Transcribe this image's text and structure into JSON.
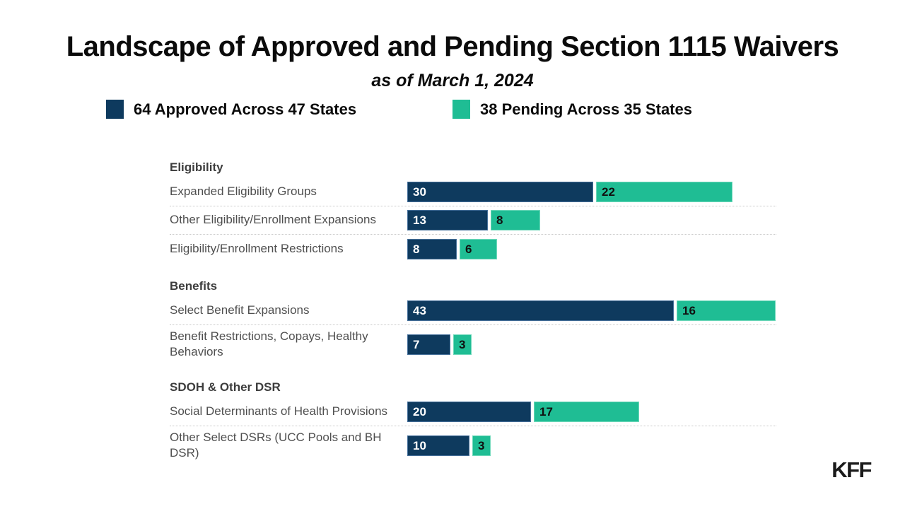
{
  "header": {
    "title": "Landscape of Approved and Pending Section 1115 Waivers",
    "subtitle": "as of March 1, 2024"
  },
  "legend": {
    "approved_label": "64 Approved Across 47 States",
    "pending_label": "38 Pending Across 35 States"
  },
  "footer": {
    "logo_text": "KFF"
  },
  "chart_data": {
    "type": "bar",
    "orientation": "horizontal",
    "x_max": 59,
    "grid": false,
    "legend_position": "top",
    "series": [
      {
        "name": "Approved",
        "color": "#0E3A5E",
        "border_color": "#46709a",
        "value_label_color": "#ffffff",
        "legend_label": "64 Approved Across 47 States"
      },
      {
        "name": "Pending",
        "color": "#1FBD94",
        "border_color": "#6fd8ba",
        "value_label_color": "#101010",
        "legend_label": "38 Pending Across 35 States"
      }
    ],
    "groups": [
      {
        "header": "Eligibility",
        "rows": [
          {
            "label": "Expanded Eligibility Groups",
            "values": [
              30,
              22
            ]
          },
          {
            "label": "Other Eligibility/Enrollment Expansions",
            "values": [
              13,
              8
            ]
          },
          {
            "label": "Eligibility/Enrollment Restrictions",
            "values": [
              8,
              6
            ]
          }
        ]
      },
      {
        "header": "Benefits",
        "rows": [
          {
            "label": "Select Benefit Expansions",
            "values": [
              43,
              16
            ]
          },
          {
            "label": "Benefit Restrictions, Copays, Healthy\nBehaviors",
            "values": [
              7,
              3
            ]
          }
        ]
      },
      {
        "header": "SDOH & Other DSR",
        "rows": [
          {
            "label": "Social Determinants of Health Provisions",
            "values": [
              20,
              17
            ]
          },
          {
            "label": "Other Select DSRs (UCC Pools and BH\nDSR)",
            "values": [
              10,
              3
            ]
          }
        ]
      }
    ]
  }
}
